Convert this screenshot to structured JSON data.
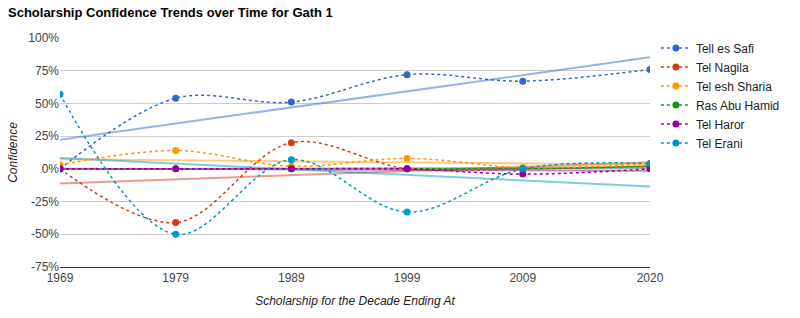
{
  "chart_data": {
    "type": "line",
    "title": "Scholarship Confidence Trends over Time for Gath 1",
    "x_label": "Scholarship for the Decade Ending At",
    "y_label": "Confidence",
    "x": [
      1969,
      1979,
      1989,
      1999,
      2009,
      2020
    ],
    "series": [
      {
        "name": "Tell es Safi",
        "color": "#3366cc",
        "marker": "circle",
        "line_style": "dotted",
        "values": [
          0,
          54,
          51,
          72,
          67,
          76
        ]
      },
      {
        "name": "Tel Nagila",
        "color": "#dc3912",
        "marker": "circle",
        "line_style": "dotted",
        "values": [
          0,
          -41,
          20,
          0,
          0,
          2
        ]
      },
      {
        "name": "Tel esh Sharia",
        "color": "#ff9900",
        "marker": "circle",
        "line_style": "dotted",
        "values": [
          3,
          14,
          2,
          8,
          1,
          4
        ]
      },
      {
        "name": "Ras Abu Hamid",
        "color": "#109618",
        "marker": "circle",
        "line_style": "dotted",
        "values": [
          0,
          0,
          0,
          0,
          0,
          2
        ]
      },
      {
        "name": "Tel Haror",
        "color": "#990099",
        "marker": "circle",
        "line_style": "dotted",
        "values": [
          0,
          0,
          0,
          0,
          -4,
          0
        ]
      },
      {
        "name": "Tel Erani",
        "color": "#0099c6",
        "marker": "circle",
        "line_style": "dotted",
        "values": [
          57,
          -50,
          7,
          -33,
          0,
          4
        ]
      }
    ],
    "xlim": [
      1969,
      2020
    ],
    "xticks": [
      1969,
      1979,
      1989,
      1999,
      2009,
      2020
    ],
    "ylim": [
      -75,
      100
    ],
    "yticks": [
      {
        "value": -75,
        "label": "-75%"
      },
      {
        "value": -50,
        "label": "-50%"
      },
      {
        "value": -25,
        "label": "-25%"
      },
      {
        "value": 0,
        "label": "0%"
      },
      {
        "value": 25,
        "label": "25%"
      },
      {
        "value": 50,
        "label": "50%"
      },
      {
        "value": 75,
        "label": "75%"
      },
      {
        "value": 100,
        "label": "100%"
      }
    ],
    "grid": true,
    "legend": "right"
  }
}
